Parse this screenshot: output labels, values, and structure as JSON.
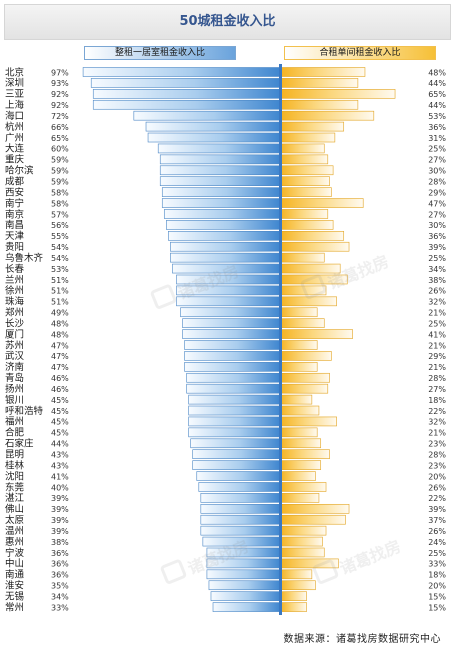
{
  "colors": {
    "accent_blue": "#5b9bd5",
    "accent_orange": "#f5b82e",
    "axis": "#3a78c2"
  },
  "watermark": {
    "text": "诸葛找房",
    "icon": "house-logo-icon"
  },
  "source": "数据来源：诸葛找房数据研究中心",
  "chart_data": {
    "type": "bar",
    "title": "50城租金收入比",
    "legend_position": "top",
    "series": [
      {
        "name": "整租一居室租金收入比",
        "side": "left",
        "values": [
          97,
          93,
          92,
          92,
          72,
          66,
          65,
          60,
          59,
          59,
          59,
          58,
          58,
          57,
          56,
          55,
          54,
          54,
          53,
          51,
          51,
          51,
          49,
          48,
          48,
          47,
          47,
          47,
          46,
          46,
          45,
          45,
          45,
          45,
          44,
          43,
          43,
          41,
          40,
          39,
          39,
          39,
          39,
          38,
          36,
          36,
          36,
          35,
          34,
          33
        ]
      },
      {
        "name": "合租单间租金收入比",
        "side": "right",
        "values": [
          48,
          44,
          65,
          44,
          53,
          36,
          31,
          25,
          27,
          30,
          28,
          29,
          47,
          27,
          30,
          36,
          39,
          25,
          34,
          38,
          26,
          32,
          21,
          25,
          41,
          21,
          29,
          21,
          28,
          27,
          18,
          22,
          32,
          21,
          23,
          28,
          23,
          20,
          26,
          22,
          39,
          37,
          26,
          24,
          25,
          33,
          18,
          20,
          15,
          15
        ]
      }
    ],
    "categories": [
      "北京",
      "深圳",
      "三亚",
      "上海",
      "海口",
      "杭州",
      "广州",
      "大连",
      "重庆",
      "哈尔滨",
      "成都",
      "西安",
      "南宁",
      "南京",
      "南昌",
      "天津",
      "贵阳",
      "乌鲁木齐",
      "长春",
      "兰州",
      "徐州",
      "珠海",
      "郑州",
      "长沙",
      "厦门",
      "苏州",
      "武汉",
      "济南",
      "青岛",
      "扬州",
      "银川",
      "呼和浩特",
      "福州",
      "合肥",
      "石家庄",
      "昆明",
      "桂林",
      "沈阳",
      "东莞",
      "湛江",
      "佛山",
      "太原",
      "温州",
      "惠州",
      "宁波",
      "中山",
      "南通",
      "淮安",
      "无锡",
      "常州"
    ],
    "left_labels": [
      "97%",
      "93%",
      "92%",
      "92%",
      "72%",
      "66%",
      "65%",
      "60%",
      "59%",
      "59%",
      "59%",
      "58%",
      "58%",
      "57%",
      "56%",
      "55%",
      "54%",
      "54%",
      "53%",
      "51%",
      "51%",
      "51%",
      "49%",
      "48%",
      "48%",
      "47%",
      "47%",
      "47%",
      "46%",
      "46%",
      "45%",
      "45%",
      "45%",
      "45%",
      "44%",
      "43%",
      "43%",
      "41%",
      "40%",
      "39%",
      "39%",
      "39%",
      "39%",
      "38%",
      "36%",
      "36%",
      "36%",
      "35%",
      "34%",
      "33%"
    ],
    "right_labels": [
      "48%",
      "44%",
      "65%",
      "44%",
      "53%",
      "36%",
      "31%",
      "25%",
      "27%",
      "30%",
      "28%",
      "29%",
      "47%",
      "27%",
      "30%",
      "36%",
      "39%",
      "25%",
      "34%",
      "38%",
      "26%",
      "32%",
      "21%",
      "25%",
      "41%",
      "21%",
      "29%",
      "21%",
      "28%",
      "27%",
      "18%",
      "22%",
      "32%",
      "21%",
      "23%",
      "28%",
      "23%",
      "20%",
      "26%",
      "22%",
      "39%",
      "37%",
      "26%",
      "24%",
      "25%",
      "33%",
      "18%",
      "20%",
      "15%",
      "15%"
    ],
    "grid": false
  }
}
